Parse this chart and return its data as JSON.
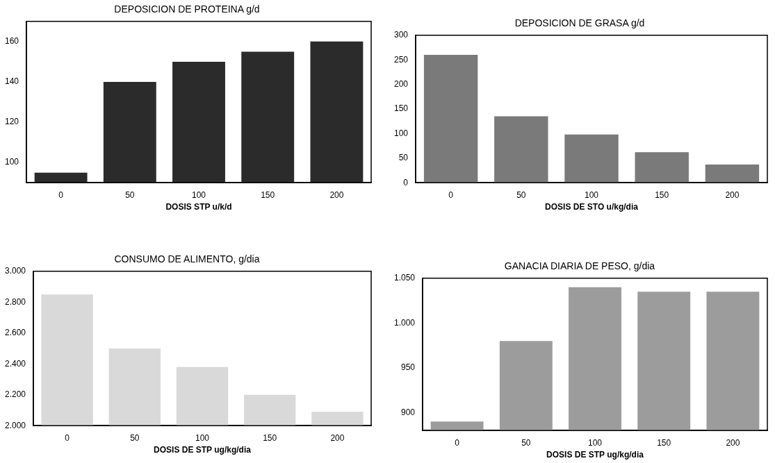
{
  "chart_data": [
    {
      "type": "bar",
      "title": "DEPOSICION DE PROTEINA g/d",
      "xlabel": "DOSIS STP u/k/d",
      "categories": [
        "0",
        "50",
        "100",
        "150",
        "200"
      ],
      "values": [
        95,
        140,
        150,
        155,
        160
      ],
      "color": "#2b2b2b",
      "ylim": [
        90,
        170
      ],
      "yticks": [
        100,
        120,
        140,
        160
      ],
      "grid": false,
      "legend": false
    },
    {
      "type": "bar",
      "title": "DEPOSICION DE GRASA g/d",
      "xlabel": "DOSIS DE STO u/kg/dia",
      "categories": [
        "0",
        "50",
        "100",
        "150",
        "200"
      ],
      "values": [
        260,
        135,
        98,
        62,
        37
      ],
      "color": "#7a7a7a",
      "ylim": [
        0,
        300
      ],
      "yticks": [
        0,
        50,
        100,
        150,
        200,
        250,
        300
      ],
      "grid": false,
      "legend": false
    },
    {
      "type": "bar",
      "title": "CONSUMO DE ALIMENTO, g/dia",
      "xlabel": "DOSIS DE STP ug/kg/dia",
      "categories": [
        "0",
        "50",
        "100",
        "150",
        "200"
      ],
      "values": [
        2850,
        2500,
        2380,
        2200,
        2090
      ],
      "color": "#d9d9d9",
      "ylim": [
        2000,
        3000
      ],
      "yticks": [
        {
          "value": 2000,
          "label": "2.000"
        },
        {
          "value": 2200,
          "label": "2.200"
        },
        {
          "value": 2400,
          "label": "2.400"
        },
        {
          "value": 2600,
          "label": "2.600"
        },
        {
          "value": 2800,
          "label": "2.800"
        },
        {
          "value": 3000,
          "label": "3.000"
        }
      ],
      "grid": false,
      "legend": false
    },
    {
      "type": "bar",
      "title": "GANACIA DIARIA DE PESO, g/dia",
      "xlabel": "DOSIS DE STP ug/kg/dia",
      "categories": [
        "0",
        "50",
        "100",
        "150",
        "200"
      ],
      "values": [
        890,
        980,
        1040,
        1035,
        1035
      ],
      "color": "#9c9c9c",
      "ylim": [
        880,
        1050
      ],
      "yticks": [
        900,
        950,
        {
          "value": 1000,
          "label": "1.000"
        },
        {
          "value": 1050,
          "label": "1.050"
        }
      ],
      "grid": false,
      "legend": false
    }
  ]
}
